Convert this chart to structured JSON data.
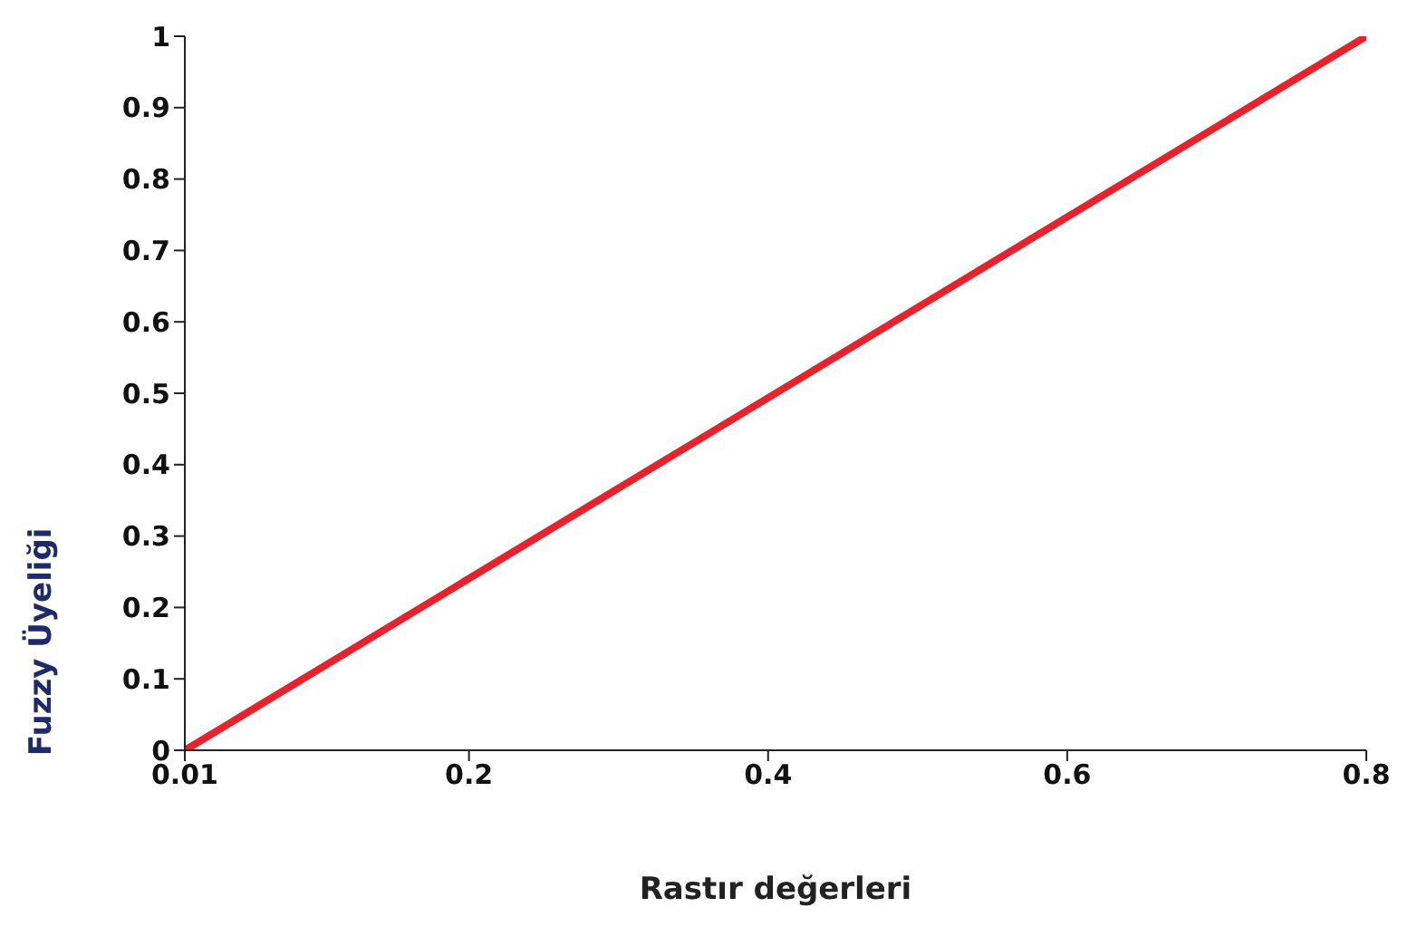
{
  "chart_data": {
    "type": "line",
    "xlabel": "Rastır değerleri",
    "ylabel": "Fuzzy Üyeliği",
    "x": [
      0.01,
      0.8
    ],
    "series": [
      {
        "color": "#e8212a",
        "values": [
          0,
          1
        ]
      }
    ],
    "xlim": [
      0.01,
      0.8
    ],
    "xticks": [
      0.01,
      0.2,
      0.4,
      0.6,
      0.8
    ],
    "ylim": [
      0,
      1
    ],
    "yticks": [
      0,
      0.1,
      0.2,
      0.3,
      0.4,
      0.5,
      0.6,
      0.7,
      0.8,
      0.9,
      1
    ],
    "grid": false,
    "legend": false,
    "marker": "none",
    "line_style": "solid"
  }
}
